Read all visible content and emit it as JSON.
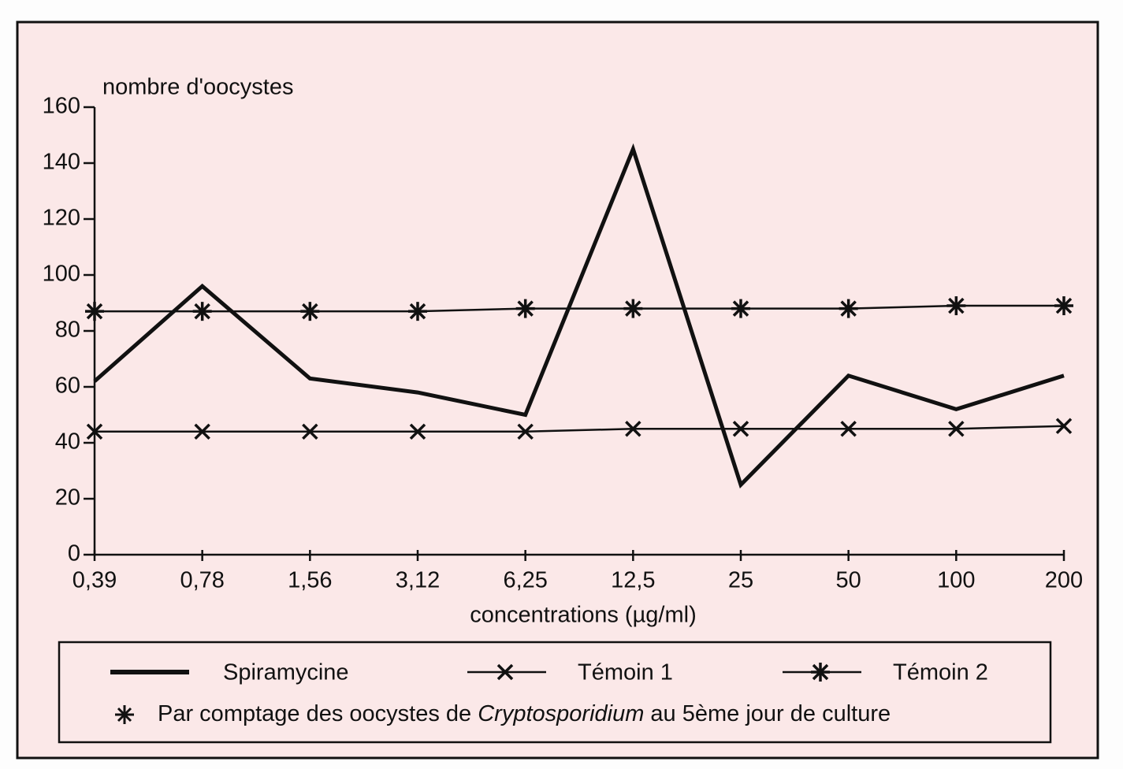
{
  "chart_data": {
    "type": "line",
    "y_label": "nombre d'oocystes",
    "x_label": "concentrations (µg/ml)",
    "categories": [
      "0,39",
      "0,78",
      "1,56",
      "3,12",
      "6,25",
      "12,5",
      "25",
      "50",
      "100",
      "200"
    ],
    "series": [
      {
        "name": "Spiramycine",
        "color": "#111111",
        "marker": "none",
        "values": [
          62,
          96,
          63,
          58,
          50,
          145,
          25,
          64,
          52,
          64
        ]
      },
      {
        "name": "Témoin 1",
        "color": "#111111",
        "marker": "x",
        "values": [
          44,
          44,
          44,
          44,
          44,
          45,
          45,
          45,
          45,
          46
        ]
      },
      {
        "name": "Témoin 2",
        "color": "#111111",
        "marker": "asterisk",
        "values": [
          87,
          87,
          87,
          87,
          88,
          88,
          88,
          88,
          89,
          89
        ]
      }
    ],
    "ylim": [
      0,
      160
    ],
    "yticks": [
      0,
      20,
      40,
      60,
      80,
      100,
      120,
      140,
      160
    ],
    "note": {
      "text_before": "Par comptage des oocystes de ",
      "text_italic": "Cryptosporidium",
      "text_after": " au 5ème jour de culture"
    }
  }
}
